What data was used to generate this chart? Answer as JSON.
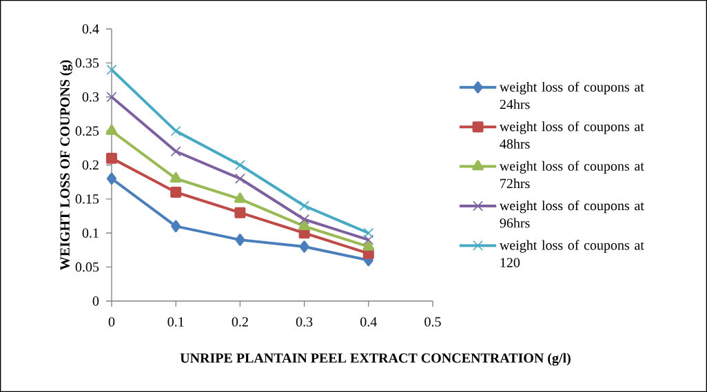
{
  "chart_data": {
    "type": "line",
    "xlabel": "UNRIPE PLANTAIN PEEL EXTRACT CONCENTRATION (g/l)",
    "ylabel": "WEIGHT LOSS OF COUPONS  (g)",
    "x": [
      0,
      0.1,
      0.2,
      0.3,
      0.4
    ],
    "series": [
      {
        "name": "weight loss of coupons at 24hrs",
        "color": "#4a7ebb",
        "marker": "diamond",
        "values": [
          0.18,
          0.11,
          0.09,
          0.08,
          0.06
        ]
      },
      {
        "name": "weight loss of coupons at 48hrs",
        "color": "#be4b48",
        "marker": "square",
        "values": [
          0.21,
          0.16,
          0.13,
          0.1,
          0.07
        ]
      },
      {
        "name": "weight loss of coupons at 72hrs",
        "color": "#98b954",
        "marker": "triangle",
        "values": [
          0.25,
          0.18,
          0.15,
          0.11,
          0.08
        ]
      },
      {
        "name": "weight loss of coupons at 96hrs",
        "color": "#7d60a0",
        "marker": "cross",
        "values": [
          0.3,
          0.22,
          0.18,
          0.12,
          0.09
        ]
      },
      {
        "name": "weight loss of coupons at 120",
        "color": "#46aac5",
        "marker": "cross",
        "values": [
          0.34,
          0.25,
          0.2,
          0.14,
          0.1
        ]
      }
    ],
    "xlim": [
      0,
      0.5
    ],
    "xticks": [
      0,
      0.1,
      0.2,
      0.3,
      0.4,
      0.5
    ],
    "ylim": [
      0,
      0.4
    ],
    "yticks": [
      0,
      0.05,
      0.1,
      0.15,
      0.2,
      0.25,
      0.3,
      0.35,
      0.4
    ],
    "grid": false,
    "legend": "right",
    "line_style": "solid"
  }
}
